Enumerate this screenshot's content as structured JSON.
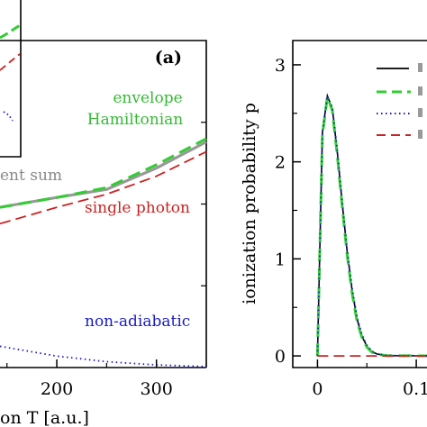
{
  "chart_data": [
    {
      "type": "line",
      "panel_label": "(a)",
      "xlabel": "on T [a.u.]",
      "x_ticks": [
        "200",
        "300"
      ],
      "xlim": [
        143,
        350
      ],
      "ylim": [
        0,
        1
      ],
      "grid": false,
      "series": [
        {
          "name": "envelope Hamiltonian",
          "color": "#33cc33",
          "style": "dashed",
          "x": [
            143,
            200,
            250,
            300,
            350
          ],
          "y": [
            0.49,
            0.52,
            0.55,
            0.62,
            0.7
          ]
        },
        {
          "name": "ent sum",
          "color": "#999999",
          "style": "solid",
          "x": [
            143,
            200,
            250,
            300,
            350
          ],
          "y": [
            0.49,
            0.52,
            0.545,
            0.61,
            0.69
          ]
        },
        {
          "name": "single photon",
          "color": "#cc2222",
          "style": "dashed",
          "x": [
            143,
            200,
            250,
            300,
            350
          ],
          "y": [
            0.44,
            0.49,
            0.53,
            0.585,
            0.66
          ]
        },
        {
          "name": "non-adiabatic",
          "color": "#1a1acc",
          "style": "dotted",
          "x": [
            143,
            200,
            250,
            300,
            350
          ],
          "y": [
            0.065,
            0.035,
            0.018,
            0.008,
            0.003
          ]
        }
      ],
      "annotations": [
        "envelope",
        "Hamiltonian",
        "ent sum",
        "single photon",
        "non-adiabatic"
      ]
    },
    {
      "type": "line",
      "ylabel": "ionization probability p",
      "y_ticks": [
        "0",
        "1",
        "2",
        "3"
      ],
      "x_ticks": [
        "0",
        "0.1"
      ],
      "xlim": [
        -0.025,
        0.13
      ],
      "ylim": [
        -0.12,
        3.25
      ],
      "grid": false,
      "legend_position": "top-right",
      "series": [
        {
          "color": "#000000",
          "style": "solid",
          "x": [
            0,
            0.005,
            0.01,
            0.015,
            0.02,
            0.025,
            0.03,
            0.035,
            0.04,
            0.045,
            0.05,
            0.055,
            0.06,
            0.07,
            0.13
          ],
          "y": [
            0,
            2.3,
            2.68,
            2.55,
            2.1,
            1.58,
            1.08,
            0.68,
            0.38,
            0.2,
            0.1,
            0.045,
            0.02,
            0.003,
            0
          ]
        },
        {
          "color": "#33cc33",
          "style": "dashed",
          "x": [
            0,
            0.005,
            0.01,
            0.015,
            0.02,
            0.025,
            0.03,
            0.035,
            0.04,
            0.045,
            0.05,
            0.055,
            0.06,
            0.07,
            0.13
          ],
          "y": [
            0,
            2.28,
            2.67,
            2.53,
            2.07,
            1.55,
            1.05,
            0.65,
            0.36,
            0.19,
            0.09,
            0.04,
            0.018,
            0.003,
            0
          ]
        },
        {
          "color": "#1a1acc",
          "style": "dotted",
          "x": [
            0,
            0.005,
            0.01,
            0.015,
            0.02,
            0.025,
            0.03,
            0.035,
            0.04,
            0.045,
            0.05,
            0.055,
            0.06,
            0.07,
            0.13
          ],
          "y": [
            0,
            2.3,
            2.68,
            2.56,
            2.12,
            1.6,
            1.1,
            0.7,
            0.4,
            0.22,
            0.11,
            0.05,
            0.022,
            0.004,
            0
          ]
        },
        {
          "color": "#cc2222",
          "style": "dashed",
          "x": [
            0,
            0.13
          ],
          "y": [
            0,
            0
          ]
        }
      ]
    }
  ]
}
